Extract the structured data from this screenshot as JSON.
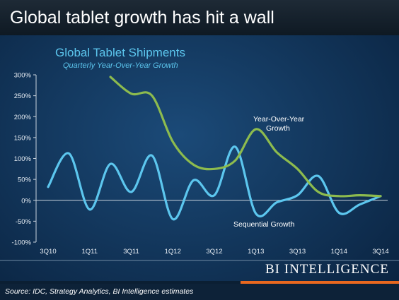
{
  "headline": "Global tablet growth has hit a wall",
  "brand": "BI INTELLIGENCE",
  "source": "Source: IDC, Strategy Analytics, BI Intelligence estimates",
  "colors": {
    "background": "#0b2540",
    "yoy_series": "#8dbb4e",
    "sequential_series": "#5cc6ee",
    "accent_bar": "#e8681f"
  },
  "chart_data": {
    "type": "line",
    "title": "Global Tablet Shipments",
    "subtitle": "Quarterly Year-Over-Year Growth",
    "categories": [
      "3Q10",
      "4Q10",
      "1Q11",
      "2Q11",
      "3Q11",
      "4Q11",
      "1Q12",
      "2Q12",
      "3Q12",
      "4Q12",
      "1Q13",
      "2Q13",
      "3Q13",
      "4Q13",
      "1Q14",
      "2Q14",
      "3Q14"
    ],
    "x_tick_labels": [
      "3Q10",
      "1Q11",
      "3Q11",
      "1Q12",
      "3Q12",
      "1Q13",
      "3Q13",
      "1Q14",
      "3Q14"
    ],
    "y_tick_labels": [
      "300%",
      "250%",
      "200%",
      "150%",
      "100%",
      "50%",
      "0%",
      "-50%",
      "-100%"
    ],
    "ylim": [
      -100,
      300
    ],
    "y_ticks": [
      300,
      250,
      200,
      150,
      100,
      50,
      0,
      -50,
      -100
    ],
    "grid": false,
    "series": [
      {
        "name": "Year-Over-Year Growth",
        "annotation_lines": [
          "Year-Over-Year",
          "Growth"
        ],
        "values": [
          null,
          null,
          null,
          295,
          255,
          250,
          140,
          85,
          75,
          95,
          170,
          115,
          75,
          20,
          10,
          12,
          10
        ]
      },
      {
        "name": "Sequential Growth",
        "annotation_lines": [
          "Sequential Growth"
        ],
        "values": [
          32,
          112,
          -22,
          87,
          20,
          107,
          -45,
          48,
          12,
          128,
          -32,
          -5,
          12,
          58,
          -30,
          -10,
          10
        ]
      }
    ]
  }
}
